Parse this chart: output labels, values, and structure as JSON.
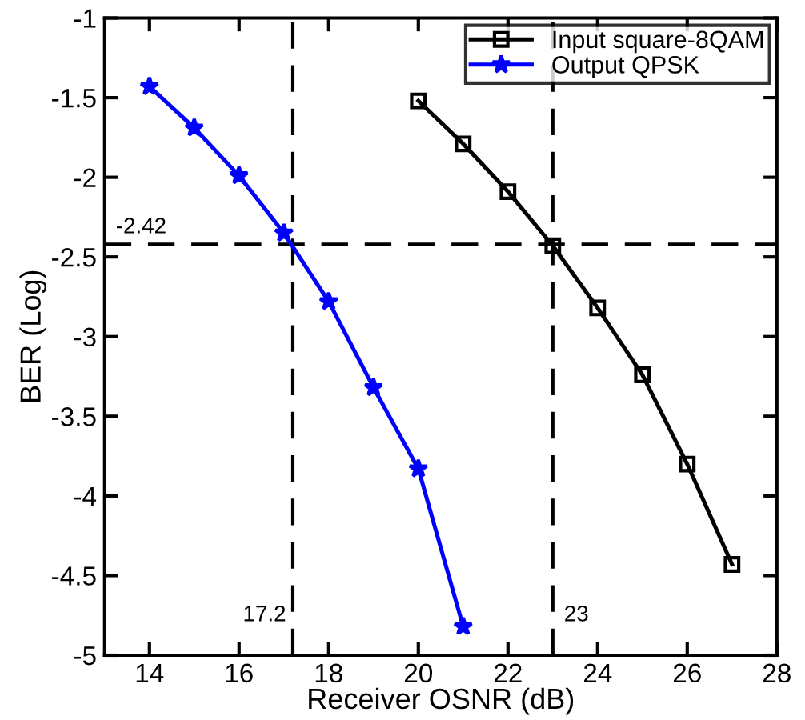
{
  "chart_data": {
    "type": "line",
    "xlabel": "Receiver OSNR (dB)",
    "ylabel": "BER (Log)",
    "xlim": [
      13,
      28
    ],
    "xticks": [
      14,
      16,
      18,
      20,
      22,
      24,
      26,
      28
    ],
    "ylim": [
      -5,
      -1
    ],
    "yticks": [
      -5,
      -4.5,
      -4,
      -3.5,
      -3,
      -2.5,
      -2,
      -1.5,
      -1
    ],
    "legend": "top right",
    "grid": false,
    "series": [
      {
        "name": "Input square-8QAM",
        "color": "#000000",
        "marker": "square",
        "x": [
          20,
          21,
          22,
          23,
          24,
          25,
          26,
          27
        ],
        "values": [
          -1.52,
          -1.79,
          -2.09,
          -2.43,
          -2.82,
          -3.24,
          -3.8,
          -4.43
        ]
      },
      {
        "name": "Output QPSK",
        "color": "#0000ff",
        "marker": "star",
        "x": [
          14,
          15,
          16,
          17,
          18,
          19,
          20,
          21
        ],
        "values": [
          -1.43,
          -1.69,
          -1.99,
          -2.35,
          -2.78,
          -3.32,
          -3.83,
          -4.82
        ]
      }
    ],
    "ref_lines": [
      {
        "axis": "y",
        "value": -2.42,
        "label": "-2.42",
        "line_style": "dashed",
        "color": "#000000"
      },
      {
        "axis": "x",
        "value": 17.2,
        "label": "17.2",
        "line_style": "dashed",
        "color": "#000000"
      },
      {
        "axis": "x",
        "value": 23,
        "label": "23",
        "line_style": "dashed",
        "color": "#000000"
      }
    ]
  }
}
